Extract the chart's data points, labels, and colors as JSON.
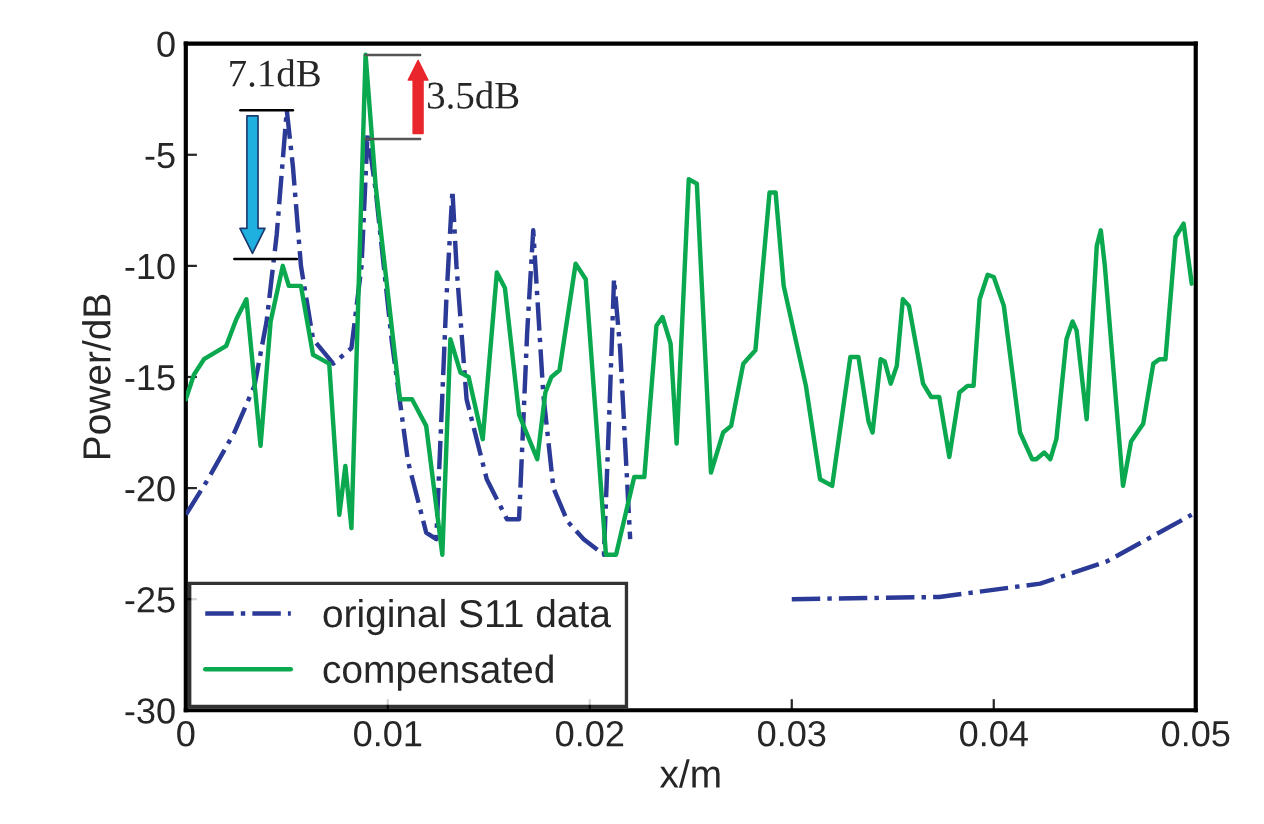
{
  "chart_data": {
    "type": "line",
    "xlabel": "x/m",
    "ylabel": "Power/dB",
    "xlim": [
      0,
      0.05
    ],
    "ylim": [
      -30,
      0
    ],
    "xticks": [
      {
        "value": 0,
        "label": "0"
      },
      0.01,
      0.02,
      0.03,
      0.04,
      0.05
    ],
    "yticks": [
      -30,
      -25,
      -20,
      -15,
      -10,
      -5,
      0
    ],
    "grid": false,
    "legend": "bottom left",
    "marker": "none",
    "series": [
      {
        "name": "original S11 data",
        "color": "#2b3a96",
        "line_style": "dashdot",
        "x": [
          0,
          0.0011,
          0.0024,
          0.0034,
          0.004,
          0.0045,
          0.005,
          0.0053,
          0.0057,
          0.0063,
          0.0073,
          0.0082,
          0.0087,
          0.009,
          0.0094,
          0.0102,
          0.011,
          0.0119,
          0.0124,
          0.0129,
          0.0132,
          0.0134,
          0.0139,
          0.0149,
          0.0159,
          0.0165,
          0.0169,
          0.0172,
          0.0177,
          0.0182,
          0.0189,
          0.0197,
          0.0207,
          0.021,
          0.0212,
          0.0215,
          0.022,
          0.024,
          0.03,
          0.0373,
          0.0423,
          0.0456,
          0.0498
        ],
        "values": [
          -21.2,
          -19.6,
          -17.5,
          -15.4,
          -12.5,
          -8.6,
          -3.0,
          -5.5,
          -10.0,
          -13.3,
          -14.4,
          -13.7,
          -10.0,
          -4.0,
          -6.6,
          -13.4,
          -18.8,
          -22.0,
          -22.3,
          -11.5,
          -6.6,
          -10.0,
          -16.0,
          -19.6,
          -21.4,
          -21.4,
          -13.0,
          -8.4,
          -15.8,
          -20.0,
          -21.5,
          -22.3,
          -23.0,
          -15.8,
          -10.6,
          -13.7,
          -22.3,
          null,
          -25.0,
          -24.9,
          -24.3,
          -23.3,
          -21.2
        ]
      },
      {
        "name": "compensated",
        "color": "#0aa84f",
        "line_style": "solid",
        "x": [
          0,
          0.0004,
          0.0009,
          0.002,
          0.0025,
          0.003,
          0.0037,
          0.0042,
          0.0048,
          0.0051,
          0.0057,
          0.0063,
          0.0071,
          0.0076,
          0.0079,
          0.0082,
          0.0089,
          0.0094,
          0.0106,
          0.0112,
          0.0119,
          0.0127,
          0.0131,
          0.0136,
          0.014,
          0.0147,
          0.0154,
          0.0158,
          0.0165,
          0.0174,
          0.0178,
          0.0181,
          0.0185,
          0.0193,
          0.0198,
          0.0208,
          0.0213,
          0.0222,
          0.0227,
          0.0233,
          0.0236,
          0.024,
          0.0243,
          0.0249,
          0.0253,
          0.026,
          0.0266,
          0.027,
          0.0276,
          0.0282,
          0.0289,
          0.0292,
          0.0296,
          0.0307,
          0.0314,
          0.032,
          0.0329,
          0.0333,
          0.0338,
          0.034,
          0.0344,
          0.0346,
          0.0349,
          0.0352,
          0.0355,
          0.0358,
          0.0365,
          0.0369,
          0.0373,
          0.0378,
          0.0383,
          0.0387,
          0.039,
          0.0393,
          0.0397,
          0.04,
          0.0405,
          0.0413,
          0.0419,
          0.0421,
          0.0425,
          0.0428,
          0.0431,
          0.0436,
          0.0439,
          0.0441,
          0.0446,
          0.0451,
          0.0453,
          0.0455,
          0.0464,
          0.0468,
          0.0471,
          0.0474,
          0.0479,
          0.0482,
          0.0485,
          0.049,
          0.0494,
          0.0498
        ],
        "values": [
          -16.0,
          -14.9,
          -14.2,
          -13.6,
          -12.4,
          -11.5,
          -18.1,
          -12.5,
          -10.0,
          -10.9,
          -10.9,
          -14.0,
          -14.4,
          -21.2,
          -19.0,
          -21.8,
          -0.5,
          -6.4,
          -16.0,
          -16.0,
          -17.2,
          -23.0,
          -13.3,
          -14.8,
          -15.0,
          -17.8,
          -10.3,
          -11.0,
          -16.7,
          -18.7,
          -15.7,
          -15.0,
          -14.7,
          -9.9,
          -10.6,
          -23.0,
          -23.0,
          -19.5,
          -19.5,
          -12.7,
          -12.3,
          -13.5,
          -18.0,
          -6.1,
          -6.3,
          -19.3,
          -17.5,
          -17.2,
          -14.4,
          -13.8,
          -6.7,
          -6.7,
          -10.9,
          -15.4,
          -19.6,
          -19.9,
          -14.1,
          -14.1,
          -17.0,
          -17.5,
          -14.2,
          -14.3,
          -15.3,
          -14.5,
          -11.5,
          -11.8,
          -15.3,
          -15.9,
          -15.9,
          -18.6,
          -15.7,
          -15.4,
          -15.4,
          -11.5,
          -10.4,
          -10.5,
          -11.8,
          -17.5,
          -18.7,
          -18.7,
          -18.4,
          -18.7,
          -17.8,
          -13.3,
          -12.5,
          -12.9,
          -16.9,
          -9.1,
          -8.4,
          -10.0,
          -19.9,
          -17.9,
          -17.5,
          -17.1,
          -14.4,
          -14.2,
          -14.2,
          -8.7,
          -8.1,
          -10.8
        ]
      }
    ],
    "annotations": [
      "7.1dB",
      "3.5dB"
    ]
  }
}
